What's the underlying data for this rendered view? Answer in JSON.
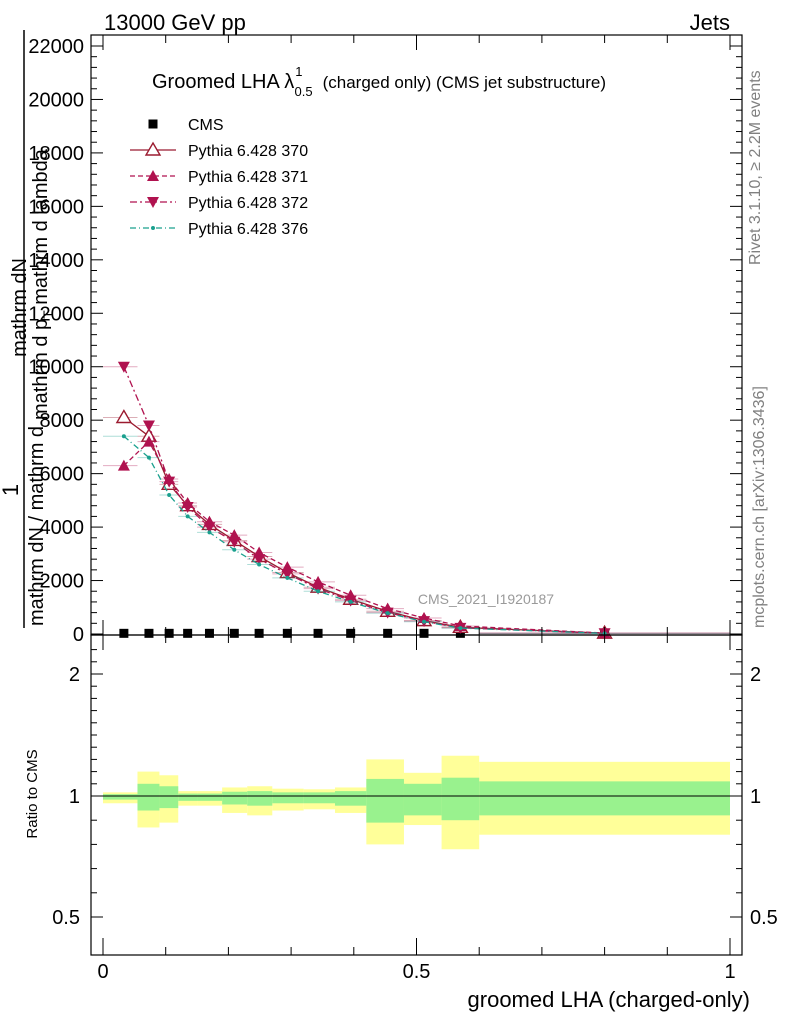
{
  "header": {
    "energy_label": "13000 GeV pp",
    "process_label": "Jets"
  },
  "side": {
    "rivet_label": "Rivet 3.1.10, ≥ 2.2M events",
    "mcplots_label": "mcplots.cern.ch [arXiv:1306.3436]"
  },
  "watermark": "CMS_2021_I1920187",
  "colors": {
    "cms": "#000000",
    "p370": "#9b1b30",
    "p371": "#b0124f",
    "p372": "#b0124f",
    "p376": "#1aa08e",
    "band_inner": "#99f28e",
    "band_outer": "#ffff99"
  },
  "chart_data": [
    {
      "type": "line",
      "title": "Groomed LHA λ",
      "title_sup": "1",
      "title_sub": "0.5",
      "title_tail": "(charged only) (CMS jet substructure)",
      "ylabel": "1 / mathrm dN / mathrm d p_T mathrm dλ  mathrm dN",
      "ylabel_parts": {
        "numerator": "mathrm dN",
        "one": "1",
        "denominator_a": "mathrm dN / mathrm d",
        "denominator_b": "mathrm d p",
        "denominator_sub": "T",
        "denominator_c": " mathrm d lambda"
      },
      "xlim": [
        0,
        1
      ],
      "ylim": [
        0,
        22000
      ],
      "yticks": [
        0,
        2000,
        4000,
        6000,
        8000,
        10000,
        12000,
        14000,
        16000,
        18000,
        20000,
        22000
      ],
      "yticklabels": [
        "0",
        "2000",
        "4000",
        "6000",
        "8000",
        "10000",
        "12000",
        "14000",
        "16000",
        "18000",
        "20000",
        "22000"
      ],
      "legend_position": "top-left",
      "bins": [
        0.0,
        0.055,
        0.09,
        0.12,
        0.15,
        0.19,
        0.23,
        0.27,
        0.32,
        0.37,
        0.42,
        0.48,
        0.54,
        0.6,
        1.0
      ],
      "series": [
        {
          "name": "CMS",
          "marker": "square",
          "x": [
            0.0333,
            0.0733,
            0.1055,
            0.135,
            0.1698,
            0.2094,
            0.249,
            0.294,
            0.343,
            0.395,
            0.454,
            0.512,
            0.57,
            0.8
          ],
          "y": [
            25,
            25,
            25,
            25,
            25,
            25,
            25,
            25,
            25,
            25,
            25,
            25,
            25,
            10
          ]
        },
        {
          "name": "Pythia 6.428 370",
          "marker": "triangle-open",
          "x": [
            0.0333,
            0.0733,
            0.1055,
            0.135,
            0.1698,
            0.2094,
            0.249,
            0.294,
            0.343,
            0.395,
            0.454,
            0.512,
            0.57,
            0.8
          ],
          "y": [
            8100,
            7400,
            5600,
            4800,
            4100,
            3500,
            2900,
            2300,
            1750,
            1300,
            850,
            500,
            250,
            30
          ]
        },
        {
          "name": "Pythia 6.428 371",
          "marker": "triangle-up",
          "x": [
            0.0333,
            0.0733,
            0.1055,
            0.135,
            0.1698,
            0.2094,
            0.249,
            0.294,
            0.343,
            0.395,
            0.454,
            0.512,
            0.57,
            0.8
          ],
          "y": [
            6300,
            7200,
            5800,
            4900,
            4200,
            3700,
            3050,
            2500,
            1950,
            1450,
            950,
            600,
            300,
            35
          ]
        },
        {
          "name": "Pythia 6.428 372",
          "marker": "triangle-down",
          "x": [
            0.0333,
            0.0733,
            0.1055,
            0.135,
            0.1698,
            0.2094,
            0.249,
            0.294,
            0.343,
            0.395,
            0.454,
            0.512,
            0.57,
            0.8
          ],
          "y": [
            10000,
            7800,
            5700,
            4750,
            4000,
            3450,
            2800,
            2250,
            1700,
            1250,
            800,
            480,
            230,
            28
          ]
        },
        {
          "name": "Pythia 6.428 376",
          "marker": "dot",
          "x": [
            0.0333,
            0.0733,
            0.1055,
            0.135,
            0.1698,
            0.2094,
            0.249,
            0.294,
            0.343,
            0.395,
            0.454,
            0.512,
            0.57,
            0.8
          ],
          "y": [
            7400,
            6600,
            5200,
            4400,
            3800,
            3150,
            2600,
            2100,
            1600,
            1200,
            780,
            460,
            220,
            25
          ]
        }
      ]
    },
    {
      "type": "area",
      "ylabel": "Ratio to CMS",
      "xlabel": "groomed LHA (charged-only)",
      "xlim": [
        0,
        1
      ],
      "ylim": [
        0.35,
        2.35
      ],
      "yticks": [
        0.5,
        1,
        2
      ],
      "yticklabels": [
        "0.5",
        "1",
        "2"
      ],
      "xticks": [
        0,
        0.5,
        1
      ],
      "xticklabels": [
        "0",
        "0.5",
        "1"
      ],
      "bins": [
        0.0,
        0.055,
        0.09,
        0.12,
        0.15,
        0.19,
        0.23,
        0.27,
        0.32,
        0.37,
        0.42,
        0.48,
        0.54,
        0.6,
        1.0
      ],
      "reference": 1.0,
      "band_inner": {
        "lo": [
          0.985,
          0.94,
          0.95,
          0.98,
          0.98,
          0.965,
          0.96,
          0.97,
          0.97,
          0.96,
          0.89,
          0.92,
          0.9,
          0.92
        ],
        "hi": [
          1.015,
          1.1,
          1.08,
          1.02,
          1.02,
          1.035,
          1.04,
          1.03,
          1.03,
          1.04,
          1.14,
          1.1,
          1.15,
          1.12
        ]
      },
      "band_outer": {
        "lo": [
          0.97,
          0.87,
          0.89,
          0.96,
          0.96,
          0.93,
          0.92,
          0.94,
          0.945,
          0.93,
          0.8,
          0.88,
          0.78,
          0.84
        ],
        "hi": [
          1.03,
          1.2,
          1.17,
          1.04,
          1.04,
          1.07,
          1.08,
          1.06,
          1.055,
          1.07,
          1.3,
          1.19,
          1.33,
          1.28
        ]
      }
    }
  ]
}
